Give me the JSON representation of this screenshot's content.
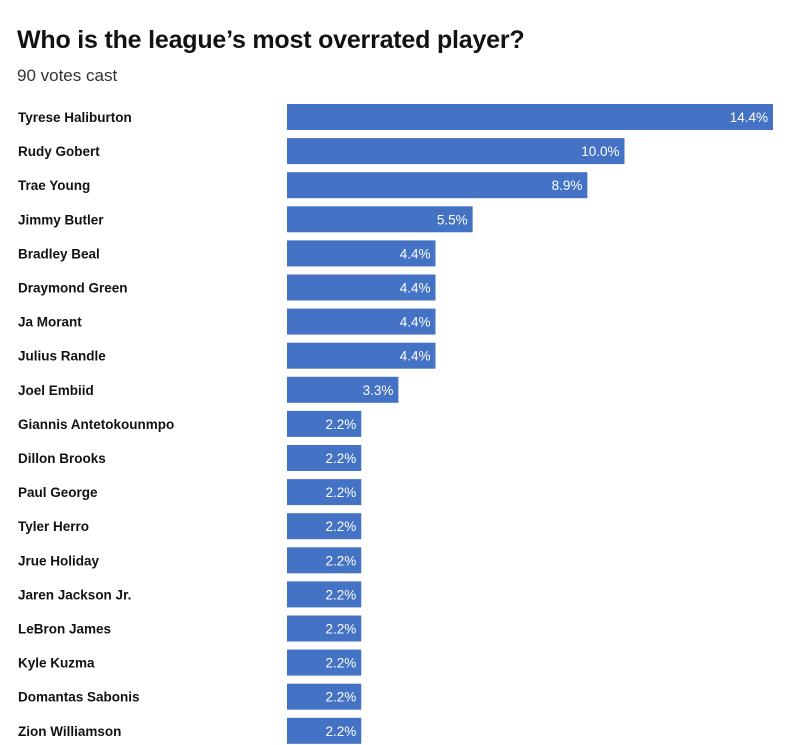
{
  "chart_data": {
    "type": "bar",
    "orientation": "horizontal",
    "title": "Who is the league’s most overrated player?",
    "subtitle": "90 votes cast",
    "categories": [
      "Tyrese Haliburton",
      "Rudy Gobert",
      "Trae Young",
      "Jimmy Butler",
      "Bradley Beal",
      "Draymond Green",
      "Ja Morant",
      "Julius Randle",
      "Joel Embiid",
      "Giannis Antetokounmpo",
      "Dillon Brooks",
      "Paul George",
      "Tyler Herro",
      "Jrue Holiday",
      "Jaren Jackson Jr.",
      "LeBron James",
      "Kyle Kuzma",
      "Domantas Sabonis",
      "Zion Williamson"
    ],
    "values": [
      14.4,
      10.0,
      8.9,
      5.5,
      4.4,
      4.4,
      4.4,
      4.4,
      3.3,
      2.2,
      2.2,
      2.2,
      2.2,
      2.2,
      2.2,
      2.2,
      2.2,
      2.2,
      2.2
    ],
    "value_labels": [
      "14.4%",
      "10.0%",
      "8.9%",
      "5.5%",
      "4.4%",
      "4.4%",
      "4.4%",
      "4.4%",
      "3.3%",
      "2.2%",
      "2.2%",
      "2.2%",
      "2.2%",
      "2.2%",
      "2.2%",
      "2.2%",
      "2.2%",
      "2.2%",
      "2.2%"
    ],
    "xlim": [
      0,
      14.4
    ],
    "grid": false,
    "legend": "none",
    "bar_color": "#4472c4"
  }
}
